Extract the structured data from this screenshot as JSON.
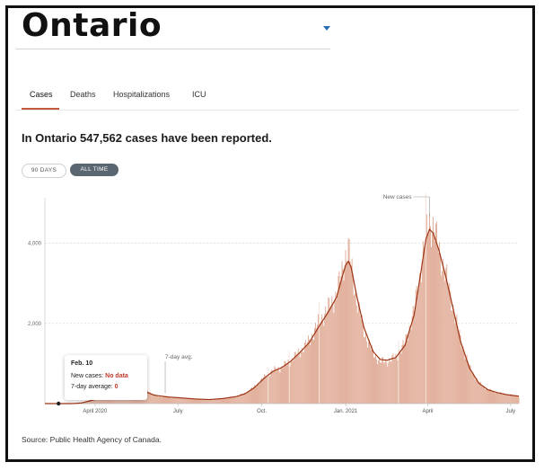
{
  "region": {
    "title": "Ontario"
  },
  "tabs": [
    {
      "label": "Cases",
      "active": true
    },
    {
      "label": "Deaths",
      "active": false
    },
    {
      "label": "Hospitalizations",
      "active": false
    },
    {
      "label": "ICU",
      "active": false
    }
  ],
  "headline": "In Ontario 547,562 cases have been reported.",
  "range_buttons": {
    "ninety": "90 DAYS",
    "all": "ALL TIME",
    "selected": "all"
  },
  "tooltip": {
    "date": "Feb. 10",
    "new_cases_label": "New cases:",
    "new_cases_value": "No data",
    "avg_label": "7-day average:",
    "avg_value": "0"
  },
  "source": "Source: Public Health Agency of Canada.",
  "colors": {
    "accent": "#c45a3b",
    "bar": "#e0ab95",
    "line": "#9e3414",
    "tab_underline": "#c45a3b"
  },
  "chart_data": {
    "type": "bar",
    "ylim": [
      0,
      5000
    ],
    "y_ticks": [
      {
        "value": 2000,
        "label": "2,000"
      },
      {
        "value": 4000,
        "label": "4,000"
      }
    ],
    "x_ticks": [
      {
        "day": 55,
        "label": "April 2020"
      },
      {
        "day": 146,
        "label": "July"
      },
      {
        "day": 238,
        "label": "Oct."
      },
      {
        "day": 330,
        "label": "Jan. 2021"
      },
      {
        "day": 420,
        "label": "April"
      },
      {
        "day": 511,
        "label": "July"
      }
    ],
    "series_labels": {
      "new_cases": "New cases",
      "avg": "7-day avg."
    },
    "days_total": 521,
    "new_cases_keypoints": [
      [
        0,
        0
      ],
      [
        30,
        0
      ],
      [
        40,
        20
      ],
      [
        55,
        120
      ],
      [
        70,
        300
      ],
      [
        85,
        420
      ],
      [
        100,
        330
      ],
      [
        110,
        380
      ],
      [
        120,
        200
      ],
      [
        135,
        160
      ],
      [
        150,
        140
      ],
      [
        165,
        110
      ],
      [
        180,
        90
      ],
      [
        195,
        130
      ],
      [
        210,
        180
      ],
      [
        220,
        260
      ],
      [
        230,
        420
      ],
      [
        240,
        640
      ],
      [
        250,
        820
      ],
      [
        260,
        900
      ],
      [
        270,
        1080
      ],
      [
        280,
        1300
      ],
      [
        290,
        1560
      ],
      [
        300,
        2000
      ],
      [
        310,
        2350
      ],
      [
        320,
        2700
      ],
      [
        326,
        3300
      ],
      [
        330,
        3700
      ],
      [
        333,
        3850
      ],
      [
        336,
        3450
      ],
      [
        342,
        2600
      ],
      [
        350,
        1800
      ],
      [
        360,
        1250
      ],
      [
        368,
        1050
      ],
      [
        375,
        1050
      ],
      [
        385,
        1150
      ],
      [
        395,
        1500
      ],
      [
        405,
        2300
      ],
      [
        412,
        3300
      ],
      [
        418,
        4200
      ],
      [
        422,
        4550
      ],
      [
        426,
        4400
      ],
      [
        432,
        3900
      ],
      [
        440,
        3200
      ],
      [
        448,
        2400
      ],
      [
        456,
        1600
      ],
      [
        466,
        900
      ],
      [
        476,
        520
      ],
      [
        486,
        350
      ],
      [
        496,
        280
      ],
      [
        506,
        230
      ],
      [
        516,
        200
      ],
      [
        521,
        190
      ]
    ],
    "avg_keypoints": [
      [
        0,
        0
      ],
      [
        30,
        0
      ],
      [
        40,
        15
      ],
      [
        55,
        100
      ],
      [
        70,
        260
      ],
      [
        85,
        360
      ],
      [
        100,
        340
      ],
      [
        110,
        300
      ],
      [
        120,
        210
      ],
      [
        135,
        165
      ],
      [
        150,
        140
      ],
      [
        165,
        115
      ],
      [
        180,
        100
      ],
      [
        195,
        125
      ],
      [
        210,
        175
      ],
      [
        220,
        250
      ],
      [
        230,
        400
      ],
      [
        240,
        620
      ],
      [
        250,
        800
      ],
      [
        260,
        900
      ],
      [
        270,
        1060
      ],
      [
        280,
        1280
      ],
      [
        290,
        1520
      ],
      [
        300,
        1900
      ],
      [
        310,
        2250
      ],
      [
        320,
        2650
      ],
      [
        326,
        3150
      ],
      [
        330,
        3450
      ],
      [
        333,
        3550
      ],
      [
        336,
        3400
      ],
      [
        342,
        2700
      ],
      [
        350,
        1900
      ],
      [
        360,
        1300
      ],
      [
        368,
        1100
      ],
      [
        375,
        1080
      ],
      [
        385,
        1150
      ],
      [
        395,
        1450
      ],
      [
        405,
        2200
      ],
      [
        412,
        3200
      ],
      [
        418,
        4100
      ],
      [
        422,
        4350
      ],
      [
        426,
        4250
      ],
      [
        432,
        3850
      ],
      [
        440,
        3150
      ],
      [
        448,
        2350
      ],
      [
        456,
        1550
      ],
      [
        466,
        880
      ],
      [
        476,
        510
      ],
      [
        486,
        345
      ],
      [
        496,
        275
      ],
      [
        506,
        225
      ],
      [
        516,
        195
      ],
      [
        521,
        185
      ]
    ]
  }
}
